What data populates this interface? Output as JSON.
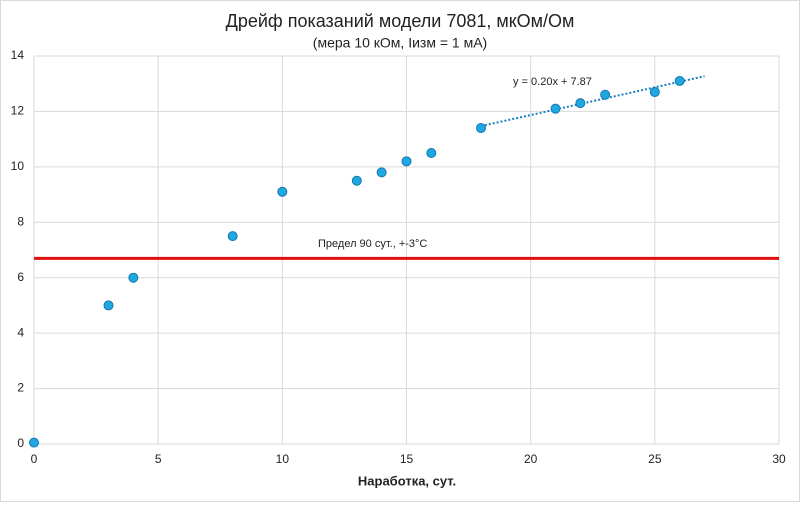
{
  "chart_data": {
    "type": "scatter",
    "title": "Дрейф показаний модели 7081, мкОм/Ом",
    "subtitle": "(мера 10 кОм, Iизм = 1 мА)",
    "x_label": "Наработка, сут.",
    "x": [
      0,
      3,
      4,
      8,
      10,
      13,
      14,
      15,
      16,
      18,
      21,
      22,
      23,
      25,
      26
    ],
    "values": [
      0.05,
      5.0,
      6.0,
      7.5,
      9.1,
      9.5,
      9.8,
      10.2,
      10.5,
      11.4,
      12.1,
      12.3,
      12.6,
      12.7,
      13.1
    ],
    "color": "#1ea7e1",
    "xlim": [
      0,
      30
    ],
    "xticks": [
      0,
      5,
      10,
      15,
      20,
      25,
      30
    ],
    "ylim": [
      0,
      14
    ],
    "yticks": [
      0,
      2,
      4,
      6,
      8,
      10,
      12,
      14
    ],
    "grid": true,
    "trendline": {
      "label": "y = 0.20x + 7.87",
      "slope": 0.2,
      "intercept": 7.87,
      "xlim": [
        18,
        27
      ],
      "color": "#1a7dc4"
    },
    "limit_line": {
      "label": "Предел 90 сут., +-3°С",
      "value": 6.7,
      "color": "#e01010"
    }
  }
}
